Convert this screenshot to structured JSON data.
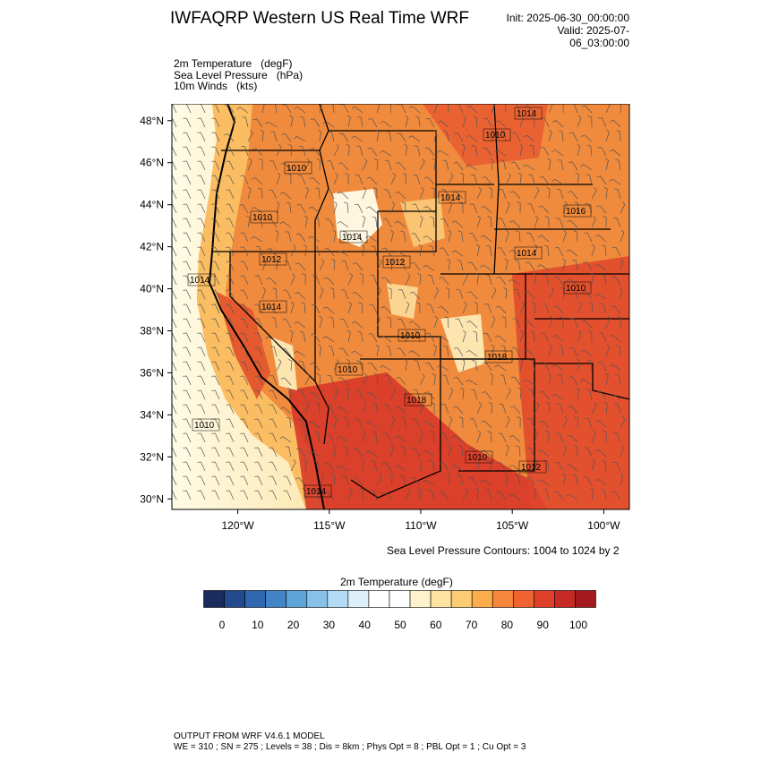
{
  "header": {
    "title": "IWFAQRP Western US Real Time WRF",
    "init": "Init: 2025-06-30_00:00:00",
    "valid": "Valid: 2025-07-06_03:00:00"
  },
  "fields": [
    {
      "name": "2m Temperature",
      "units": "(degF)"
    },
    {
      "name": "Sea Level Pressure",
      "units": "(hPa)"
    },
    {
      "name": "10m Winds",
      "units": "(kts)"
    }
  ],
  "map": {
    "lat_labels": [
      "48°N",
      "46°N",
      "44°N",
      "42°N",
      "40°N",
      "38°N",
      "36°N",
      "34°N",
      "32°N",
      "30°N"
    ],
    "lon_labels": [
      "120°W",
      "115°W",
      "110°W",
      "105°W",
      "100°W"
    ],
    "lat_range": [
      29.5,
      48.8
    ],
    "lon_range": [
      -123.6,
      -98.6
    ],
    "pressure_labels": [
      "1014",
      "1010",
      "1010",
      "1014",
      "1010",
      "1014",
      "1012",
      "1014",
      "1016",
      "1012",
      "1014",
      "1010",
      "1014",
      "1010",
      "1018",
      "1010",
      "1010",
      "1012",
      "1014",
      "1010",
      "1018"
    ],
    "contour_note": "Sea Level Pressure Contours: 1004 to 1024 by 2"
  },
  "colorbar": {
    "title": "2m Temperature  (degF)",
    "colors": [
      "#1a2c5e",
      "#234a8e",
      "#2f68b0",
      "#4384c7",
      "#5ea4d9",
      "#86c1e9",
      "#b3dbf3",
      "#ddf0fa",
      "#ffffff",
      "#ffffff",
      "#fef2cc",
      "#fde2a0",
      "#fdcb74",
      "#fbad4e",
      "#f7873a",
      "#ef6330",
      "#e0402a",
      "#c72a25",
      "#a3191e"
    ],
    "tick_labels": [
      "0",
      "10",
      "20",
      "30",
      "40",
      "50",
      "60",
      "70",
      "80",
      "90",
      "100"
    ]
  },
  "footer": {
    "line1": "OUTPUT FROM WRF V4.6.1 MODEL",
    "line2": "WE = 310 ; SN = 275 ; Levels = 38 ; Dis = 8km ; Phys Opt = 8 ; PBL Opt = 1 ; Cu Opt = 3"
  }
}
